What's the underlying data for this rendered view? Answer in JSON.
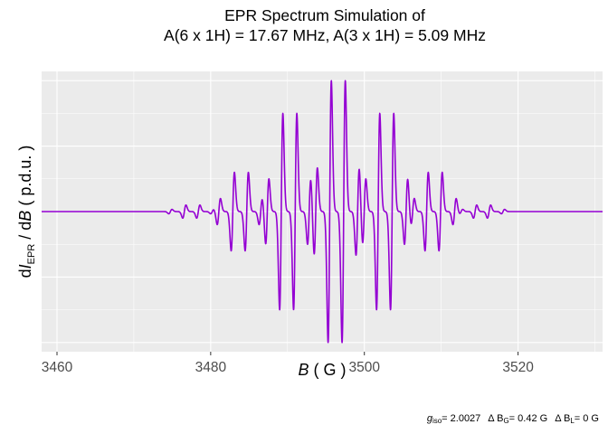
{
  "chart_data": {
    "type": "line",
    "title_line1": "EPR Spectrum Simulation of",
    "title_line2": "A(6 x 1H) = 17.67 MHz, A(3 x 1H) = 5.09 MHz",
    "xlabel": "B ( G )",
    "ylabel": "dI_EPR / dB ( p.d.u. )",
    "x_ticks": [
      3460,
      3480,
      3500,
      3520
    ],
    "xlim": [
      3458,
      3531
    ],
    "ylim": [
      -1.07,
      1.07
    ],
    "grid": true,
    "line_color": "#9400d3",
    "panel_color": "#ebebeb",
    "simulation": {
      "g_iso": 2.0027,
      "center_field_G": 3496.4,
      "hyperfine": [
        {
          "nuclei": 6,
          "A_MHz": 17.67
        },
        {
          "nuclei": 3,
          "A_MHz": 5.09
        }
      ],
      "delta_B_G_G": 0.42,
      "delta_B_L_G": 0
    },
    "caption": {
      "g_label": "g",
      "g_sub": "iso",
      "g_value": "= 2.0027",
      "dBG_label": "Δ B",
      "dBG_sub": "G",
      "dBG_value": "= 0.42  G",
      "dBL_label": "Δ B",
      "dBL_sub": "L",
      "dBL_value": "= 0  G"
    },
    "axis_labels": {
      "ylabel_d": "d",
      "ylabel_I": "I",
      "ylabel_sub": "EPR",
      "ylabel_slash": " / d",
      "ylabel_B": "B",
      "ylabel_unit": "  ( p.d.u. )",
      "xlabel_B": "B",
      "xlabel_unit": " ( G )"
    }
  }
}
